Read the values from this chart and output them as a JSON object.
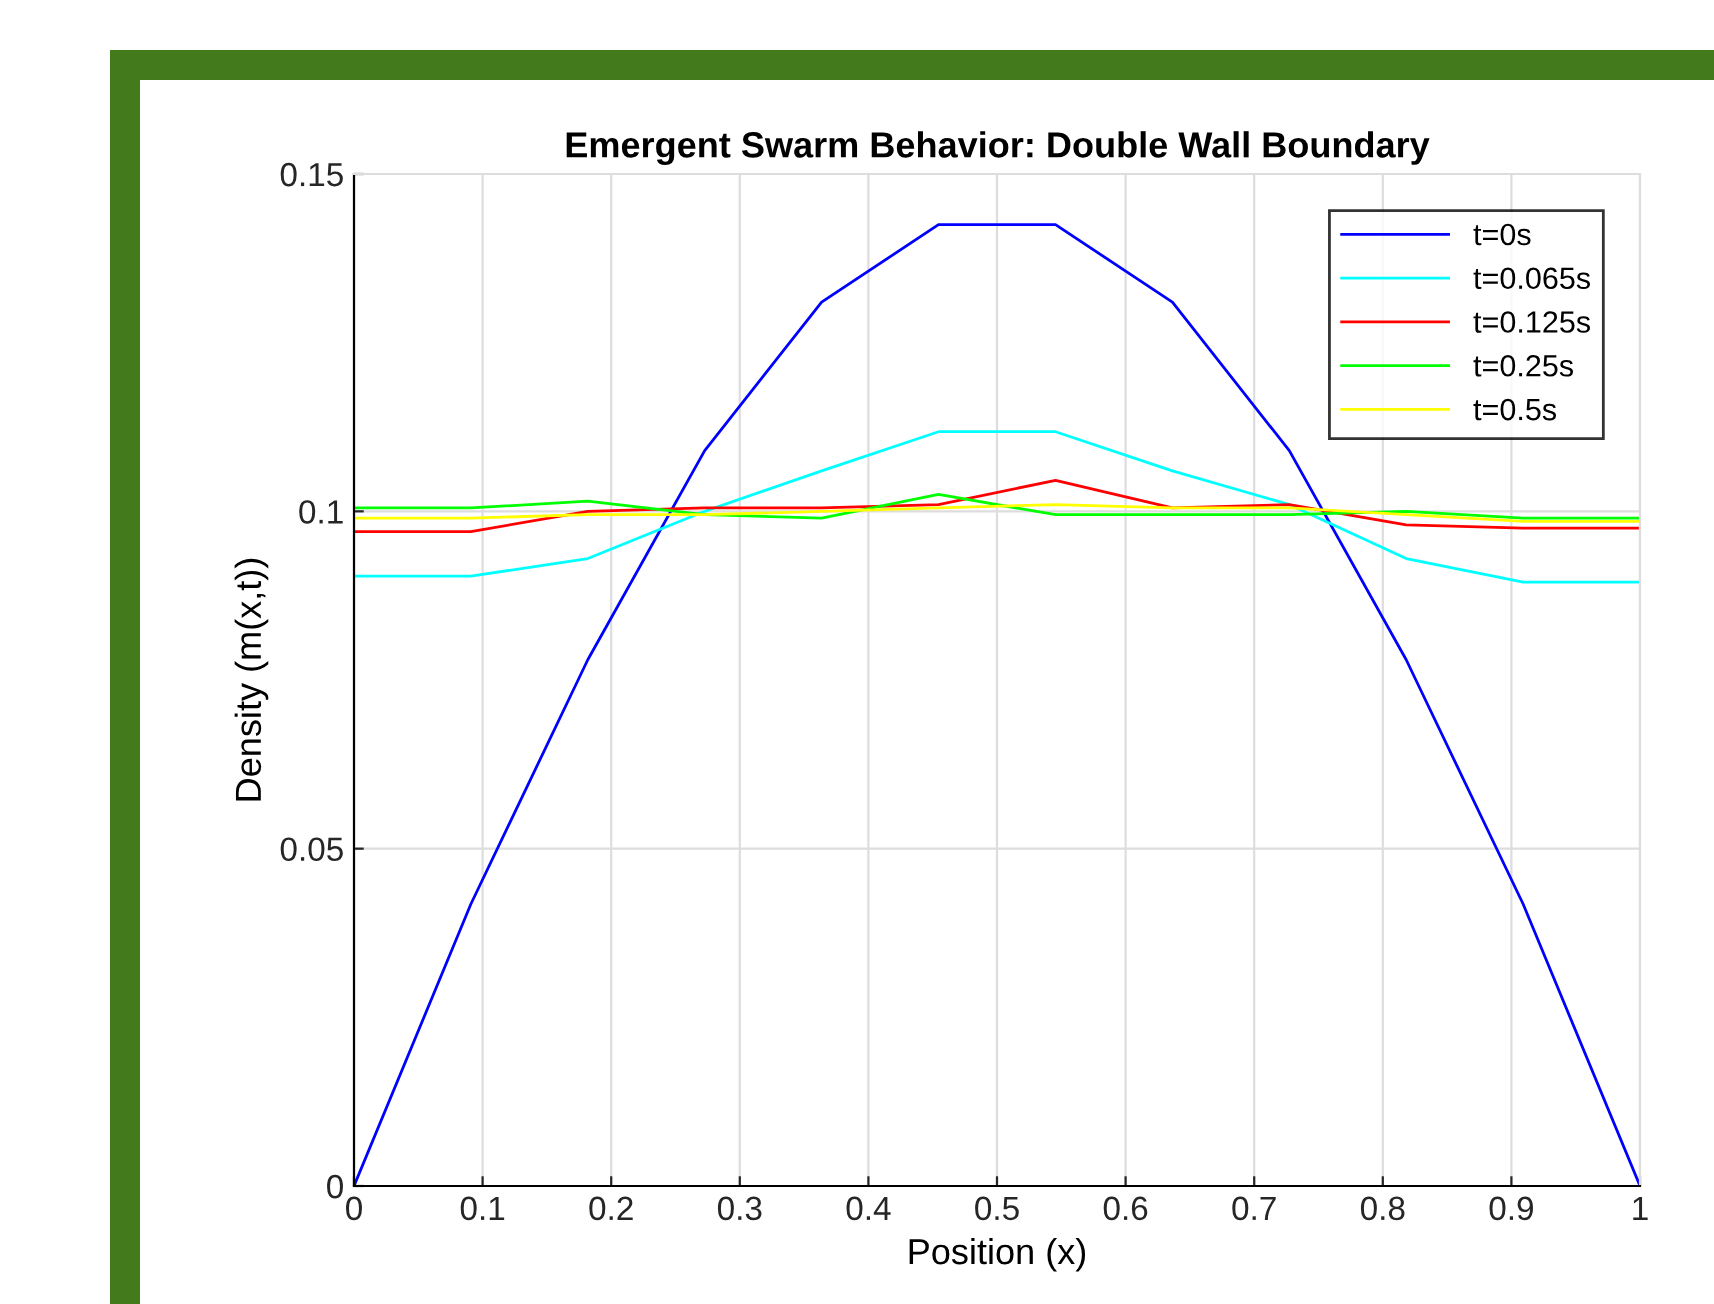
{
  "chart_data": {
    "type": "line",
    "title": "Emergent Swarm Behavior: Double Wall Boundary",
    "xlabel": "Position (x)",
    "ylabel": "Density (m(x,t))",
    "x": [
      0,
      0.0909,
      0.1818,
      0.2727,
      0.3636,
      0.4545,
      0.5455,
      0.6364,
      0.7273,
      0.8182,
      0.9091,
      1
    ],
    "series": [
      {
        "name": "t=0s",
        "color": "#0000ff",
        "values": [
          0,
          0.0418,
          0.078,
          0.109,
          0.131,
          0.1425,
          0.1425,
          0.131,
          0.109,
          0.078,
          0.0418,
          0
        ]
      },
      {
        "name": "t=0.065s",
        "color": "#00ffff",
        "values": [
          0.0904,
          0.0904,
          0.093,
          0.1,
          0.106,
          0.1118,
          0.1118,
          0.106,
          0.101,
          0.093,
          0.0895,
          0.0895
        ]
      },
      {
        "name": "t=0.125s",
        "color": "#ff0000",
        "values": [
          0.097,
          0.097,
          0.1,
          0.1005,
          0.1005,
          0.101,
          0.1046,
          0.1005,
          0.101,
          0.098,
          0.0975,
          0.0975
        ]
      },
      {
        "name": "t=0.25s",
        "color": "#00ff00",
        "values": [
          0.1005,
          0.1005,
          0.1015,
          0.0995,
          0.099,
          0.1025,
          0.0995,
          0.0995,
          0.0995,
          0.1,
          0.099,
          0.099
        ]
      },
      {
        "name": "t=0.5s",
        "color": "#ffff00",
        "values": [
          0.099,
          0.099,
          0.0995,
          0.0995,
          0.1,
          0.1005,
          0.101,
          0.1005,
          0.1005,
          0.0995,
          0.0985,
          0.0985
        ]
      }
    ],
    "xlim": [
      0,
      1
    ],
    "ylim": [
      0,
      0.15
    ],
    "xticks": [
      0,
      0.1,
      0.2,
      0.3,
      0.4,
      0.5,
      0.6,
      0.7,
      0.8,
      0.9,
      1
    ],
    "yticks": [
      0,
      0.05,
      0.1,
      0.15
    ],
    "grid": true,
    "legend": "top right",
    "marker": "none",
    "line_style": "solid"
  }
}
